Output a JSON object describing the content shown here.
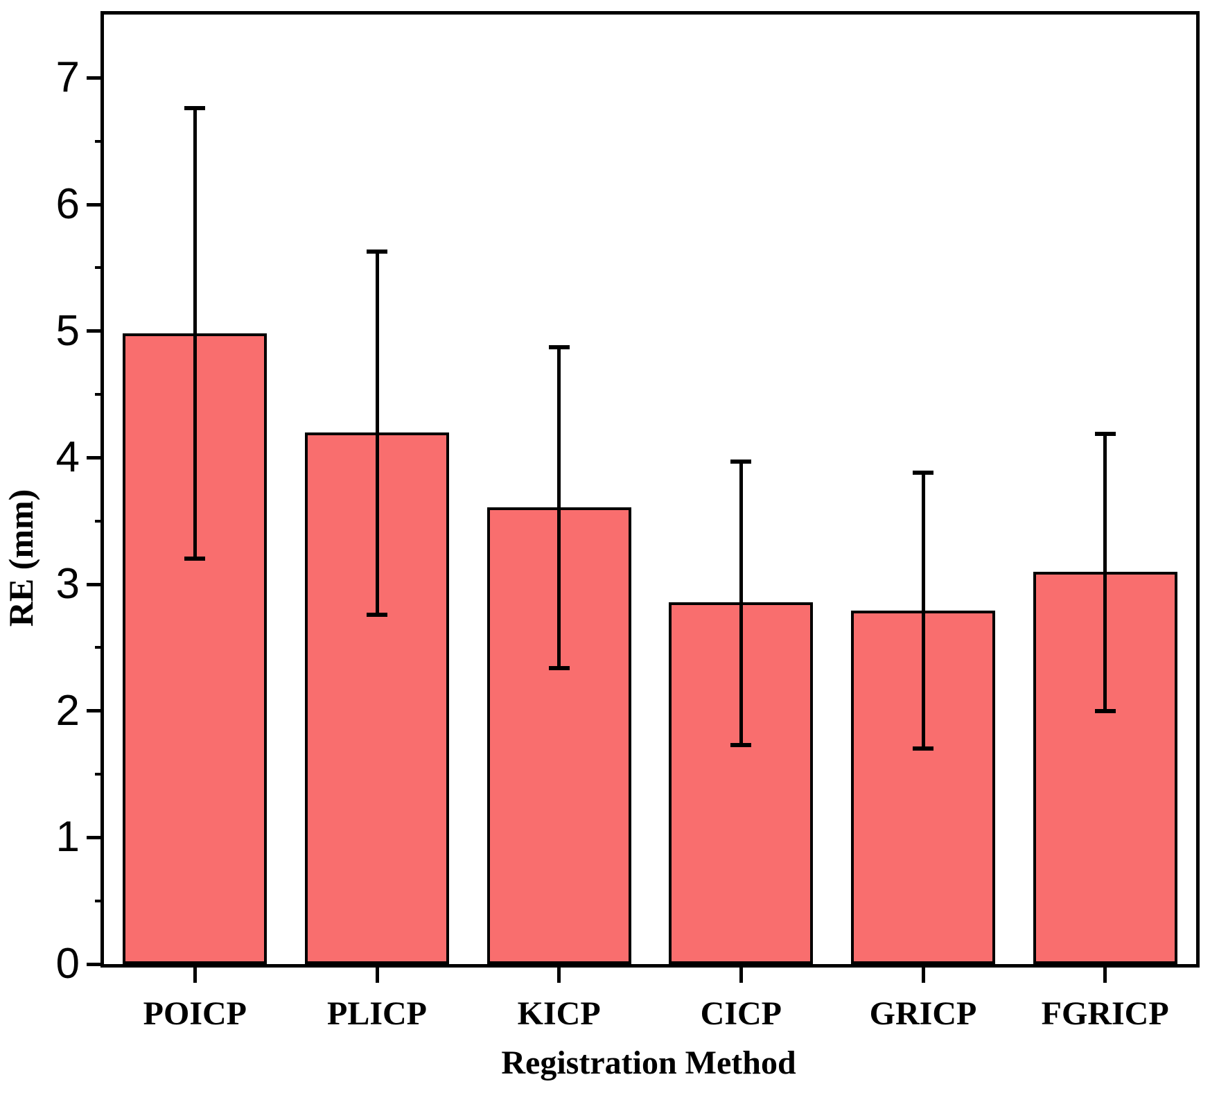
{
  "chart_data": {
    "type": "bar",
    "title": "",
    "xlabel": "Registration Method",
    "ylabel": "RE (mm)",
    "categories": [
      "POICP",
      "PLICP",
      "KICP",
      "CICP",
      "GRICP",
      "FGRICP"
    ],
    "values": [
      4.98,
      4.2,
      3.61,
      2.86,
      2.79,
      3.1
    ],
    "error_upper_caps": [
      6.76,
      5.63,
      4.87,
      3.97,
      3.88,
      4.19
    ],
    "error_lower_caps": [
      3.2,
      2.76,
      2.34,
      1.73,
      1.7,
      2.0
    ],
    "ylim": [
      0,
      7.5
    ],
    "y_major_ticks": [
      0,
      1,
      2,
      3,
      4,
      5,
      6,
      7
    ],
    "y_minor_step": 0.5,
    "grid": false,
    "legend": false,
    "frame": "full-box",
    "bar_color": "#F96E6E",
    "bar_edge_color": "#000000",
    "error_color": "#000000",
    "axis_color": "#000000",
    "background_color": "#FFFFFF"
  }
}
